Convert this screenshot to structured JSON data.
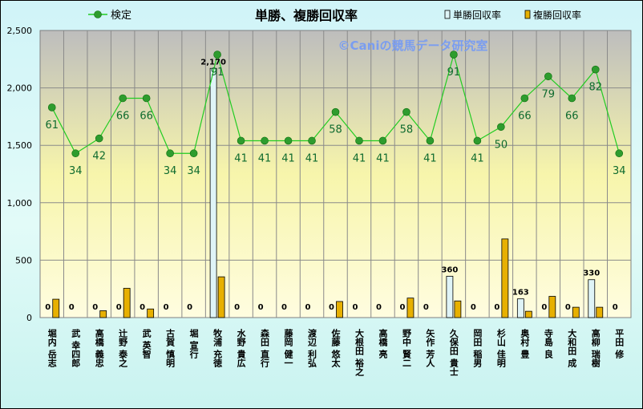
{
  "chart_data": {
    "type": "bar",
    "title": "単勝、複勝回収率",
    "watermark": "©Caniの競馬データ研究室",
    "categories": [
      "堀内 岳志",
      "武 幸四郎",
      "高橋 義忠",
      "辻野 泰之",
      "武 英智",
      "古賀 慎明",
      "堀 宣行",
      "牧浦 充徳",
      "水野 貴広",
      "森田 直行",
      "藤岡 健一",
      "渡辺 利弘",
      "佐藤 悠太",
      "大根田 裕之",
      "高橋 亮",
      "野中 賢二",
      "矢作 芳人",
      "久保田 貴士",
      "岡田 稲男",
      "杉山 佳明",
      "奥村 豊",
      "寺島 良",
      "大和田 成",
      "高柳 瑞樹",
      "平田 修"
    ],
    "ylim": [
      0,
      2500
    ],
    "yticks": [
      "0",
      "500",
      "1,000",
      "1,500",
      "2,000",
      "2,500"
    ],
    "grid": true,
    "legend_position": "top",
    "series": [
      {
        "name": "検定",
        "kind": "line",
        "color": "#22cc22",
        "values": [
          1830,
          1430,
          1560,
          1910,
          1910,
          1430,
          1430,
          2290,
          1540,
          1540,
          1540,
          1540,
          1790,
          1540,
          1540,
          1790,
          1540,
          2290,
          1540,
          1660,
          1910,
          2100,
          1910,
          2160,
          1430
        ],
        "labels": [
          "61",
          "34",
          "42",
          "66",
          "66",
          "34",
          "34",
          "91",
          "41",
          "41",
          "41",
          "41",
          "58",
          "41",
          "41",
          "58",
          "41",
          "91",
          "41",
          "50",
          "66",
          "79",
          "66",
          "82",
          "34"
        ]
      },
      {
        "name": "単勝回収率",
        "kind": "bar",
        "color": "#dff4f7",
        "values": [
          0,
          0,
          0,
          0,
          0,
          0,
          0,
          2170,
          0,
          0,
          0,
          0,
          0,
          0,
          0,
          0,
          0,
          360,
          0,
          0,
          163,
          0,
          0,
          330,
          0
        ],
        "labels": [
          "0",
          "0",
          "0",
          "0",
          "0",
          "0",
          "0",
          "2,170",
          "0",
          "0",
          "0",
          "0",
          "0",
          "0",
          "0",
          "0",
          "0",
          "360",
          "0",
          "0",
          "163",
          "0",
          "0",
          "330",
          "0"
        ]
      },
      {
        "name": "複勝回収率",
        "kind": "bar",
        "color": "#e7b000",
        "values": [
          160,
          0,
          60,
          255,
          75,
          0,
          0,
          355,
          0,
          0,
          0,
          0,
          140,
          0,
          0,
          170,
          0,
          145,
          0,
          685,
          55,
          185,
          90,
          90,
          0
        ]
      }
    ]
  }
}
